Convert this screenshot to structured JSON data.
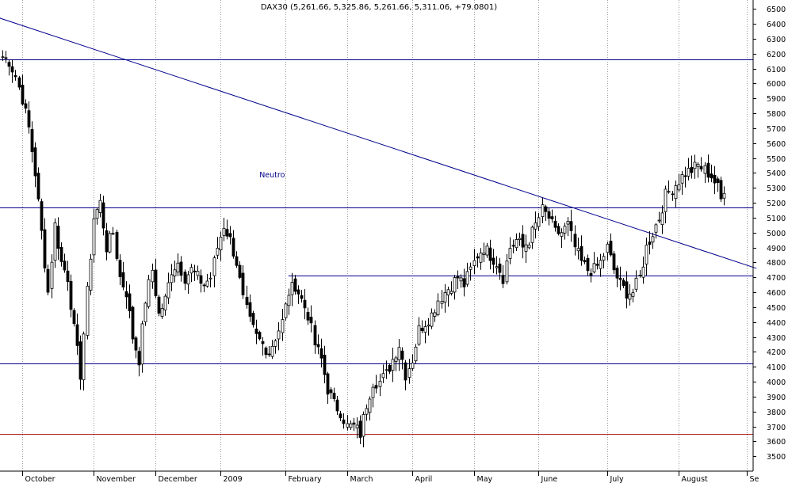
{
  "chart_data": {
    "type": "candlestick",
    "title": "DAX30 (5,261.66, 5,325.86, 5,261.66, 5,311.06, +79.0801)",
    "ylim": [
      3400,
      6560
    ],
    "y_ticks": [
      3500,
      3600,
      3700,
      3800,
      3900,
      4000,
      4100,
      4200,
      4300,
      4400,
      4500,
      4600,
      4700,
      4800,
      4900,
      5000,
      5100,
      5200,
      5300,
      5400,
      5500,
      5600,
      5700,
      5800,
      5900,
      6000,
      6100,
      6200,
      6300,
      6400,
      6500
    ],
    "grid": "vertical-dotted",
    "month_labels": [
      {
        "label": "October",
        "bar": 6
      },
      {
        "label": "November",
        "bar": 28
      },
      {
        "label": "December",
        "bar": 47
      },
      {
        "label": "2009",
        "bar": 67
      },
      {
        "label": "February",
        "bar": 87
      },
      {
        "label": "March",
        "bar": 106
      },
      {
        "label": "April",
        "bar": 126
      },
      {
        "label": "May",
        "bar": 145
      },
      {
        "label": "June",
        "bar": 165
      },
      {
        "label": "July",
        "bar": 186
      },
      {
        "label": "August",
        "bar": 208
      },
      {
        "label": "Se",
        "bar": 229
      }
    ],
    "horizontal_lines": [
      {
        "y": 6160,
        "color": "#00008b"
      },
      {
        "y": 5170,
        "color": "#00008b"
      },
      {
        "y": 4120,
        "color": "#00008b"
      },
      {
        "y": 3650,
        "color": "#b22222"
      },
      {
        "y": 4710,
        "color": "#00008b",
        "from_bar": 88
      }
    ],
    "trendline": {
      "from": {
        "bar": -1,
        "y": 6440
      },
      "to": {
        "bar": 232,
        "y": 4760
      },
      "color": "#00008b"
    },
    "annotation": {
      "text": "Neutro",
      "bar": 83,
      "y": 5370
    },
    "anchors": [
      [
        0,
        6180
      ],
      [
        2,
        6150
      ],
      [
        4,
        6050
      ],
      [
        6,
        5900
      ],
      [
        8,
        5700
      ],
      [
        10,
        5400
      ],
      [
        12,
        5000
      ],
      [
        14,
        4600
      ],
      [
        16,
        5050
      ],
      [
        18,
        4800
      ],
      [
        20,
        4700
      ],
      [
        22,
        4350
      ],
      [
        24,
        4050
      ],
      [
        26,
        4600
      ],
      [
        28,
        5100
      ],
      [
        30,
        5200
      ],
      [
        32,
        4900
      ],
      [
        34,
        5000
      ],
      [
        36,
        4700
      ],
      [
        38,
        4600
      ],
      [
        40,
        4300
      ],
      [
        42,
        4150
      ],
      [
        44,
        4550
      ],
      [
        46,
        4750
      ],
      [
        48,
        4450
      ],
      [
        50,
        4550
      ],
      [
        52,
        4750
      ],
      [
        54,
        4800
      ],
      [
        56,
        4700
      ],
      [
        58,
        4750
      ],
      [
        60,
        4700
      ],
      [
        62,
        4650
      ],
      [
        64,
        4700
      ],
      [
        66,
        4900
      ],
      [
        68,
        5050
      ],
      [
        70,
        4950
      ],
      [
        72,
        4800
      ],
      [
        74,
        4550
      ],
      [
        76,
        4400
      ],
      [
        78,
        4300
      ],
      [
        80,
        4250
      ],
      [
        82,
        4200
      ],
      [
        84,
        4300
      ],
      [
        86,
        4400
      ],
      [
        88,
        4600
      ],
      [
        90,
        4650
      ],
      [
        92,
        4550
      ],
      [
        94,
        4450
      ],
      [
        96,
        4250
      ],
      [
        98,
        4150
      ],
      [
        100,
        3950
      ],
      [
        102,
        3850
      ],
      [
        104,
        3800
      ],
      [
        106,
        3700
      ],
      [
        108,
        3700
      ],
      [
        110,
        3650
      ],
      [
        112,
        3850
      ],
      [
        114,
        4000
      ],
      [
        116,
        4000
      ],
      [
        118,
        4050
      ],
      [
        120,
        4150
      ],
      [
        122,
        4250
      ],
      [
        124,
        4050
      ],
      [
        126,
        4150
      ],
      [
        128,
        4350
      ],
      [
        130,
        4400
      ],
      [
        132,
        4450
      ],
      [
        134,
        4550
      ],
      [
        136,
        4600
      ],
      [
        138,
        4650
      ],
      [
        140,
        4700
      ],
      [
        142,
        4650
      ],
      [
        144,
        4750
      ],
      [
        146,
        4850
      ],
      [
        148,
        4900
      ],
      [
        150,
        4850
      ],
      [
        152,
        4800
      ],
      [
        154,
        4700
      ],
      [
        156,
        4900
      ],
      [
        158,
        4950
      ],
      [
        160,
        4900
      ],
      [
        162,
        4950
      ],
      [
        164,
        5050
      ],
      [
        166,
        5150
      ],
      [
        168,
        5100
      ],
      [
        170,
        5000
      ],
      [
        172,
        5000
      ],
      [
        174,
        5050
      ],
      [
        176,
        4900
      ],
      [
        178,
        4800
      ],
      [
        180,
        4750
      ],
      [
        182,
        4750
      ],
      [
        184,
        4800
      ],
      [
        186,
        4900
      ],
      [
        188,
        4750
      ],
      [
        190,
        4650
      ],
      [
        192,
        4600
      ],
      [
        194,
        4600
      ],
      [
        196,
        4700
      ],
      [
        198,
        4900
      ],
      [
        200,
        5000
      ],
      [
        202,
        5100
      ],
      [
        204,
        5250
      ],
      [
        206,
        5300
      ],
      [
        208,
        5350
      ],
      [
        210,
        5400
      ],
      [
        212,
        5420
      ],
      [
        214,
        5450
      ],
      [
        216,
        5420
      ],
      [
        218,
        5380
      ],
      [
        220,
        5300
      ],
      [
        221,
        5220
      ],
      [
        222,
        5300
      ]
    ]
  }
}
